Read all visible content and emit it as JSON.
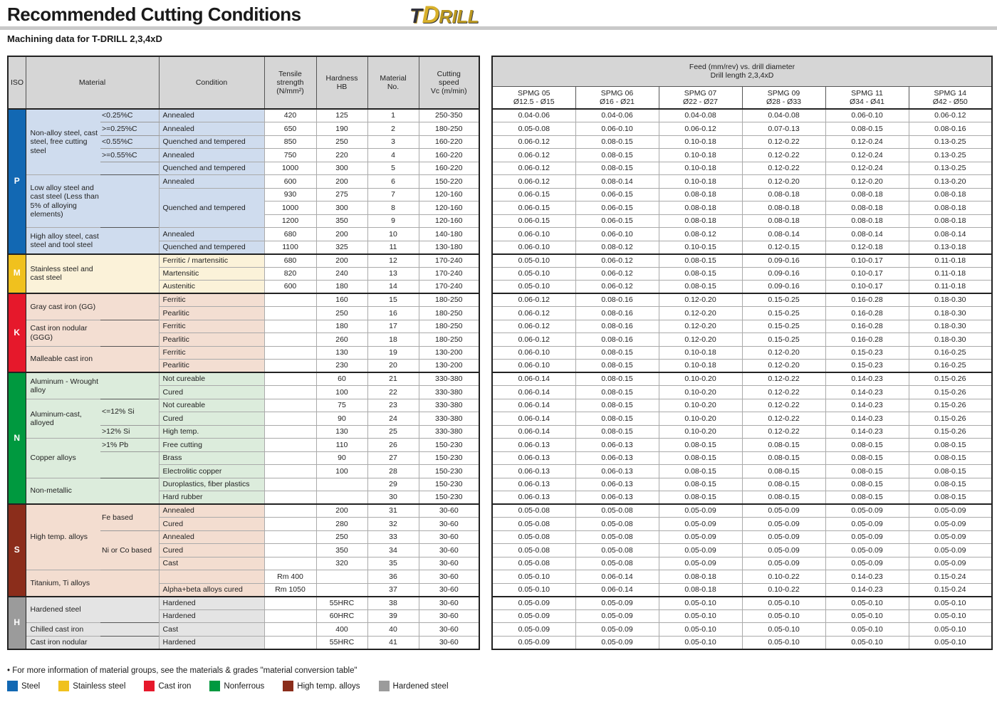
{
  "header": {
    "title": "Recommended Cutting Conditions",
    "subtitle": "Machining data for T-DRILL 2,3,4xD",
    "logo": {
      "t": "T",
      "d": "D",
      "rest": "RILL"
    }
  },
  "left_table": {
    "columns": {
      "iso": "ISO",
      "material": "Material",
      "condition": "Condition",
      "tensile": "Tensile\nstrength\n(N/mm²)",
      "hardness": "Hardness\nHB",
      "material_no": "Material\nNo.",
      "cutting_speed": "Cutting\nspeed\nVc (m/min)"
    },
    "groups": [
      {
        "iso": "P",
        "tab_color": "#1268b3",
        "row_bg": "#cfdcee",
        "materials": [
          {
            "name": "Non-alloy steel, cast steel, free cutting steel",
            "rows": [
              {
                "sub": "<0.25%C",
                "cond": "Annealed",
                "tensile": "420",
                "hb": "125",
                "no": "1",
                "vc": "250-350"
              },
              {
                "sub": ">=0.25%C",
                "cond": "Annealed",
                "tensile": "650",
                "hb": "190",
                "no": "2",
                "vc": "180-250"
              },
              {
                "sub": "<0.55%C",
                "cond": "Quenched and tempered",
                "tensile": "850",
                "hb": "250",
                "no": "3",
                "vc": "160-220"
              },
              {
                "sub": ">=0.55%C",
                "cond": "Annealed",
                "tensile": "750",
                "hb": "220",
                "no": "4",
                "vc": "160-220"
              },
              {
                "sub": "",
                "cond": "Quenched and tempered",
                "tensile": "1000",
                "hb": "300",
                "no": "5",
                "vc": "160-220"
              }
            ]
          },
          {
            "name": "Low alloy steel and cast steel (Less than 5% of alloying elements)",
            "rows": [
              {
                "sub": "",
                "cond": "Annealed",
                "tensile": "600",
                "hb": "200",
                "no": "6",
                "vc": "150-220"
              },
              {
                "sub": "",
                "cond": "Quenched and tempered",
                "cond_span": 3,
                "tensile": "930",
                "hb": "275",
                "no": "7",
                "vc": "120-160"
              },
              {
                "sub": "",
                "cond": null,
                "tensile": "1000",
                "hb": "300",
                "no": "8",
                "vc": "120-160"
              },
              {
                "sub": "",
                "cond": null,
                "tensile": "1200",
                "hb": "350",
                "no": "9",
                "vc": "120-160"
              }
            ]
          },
          {
            "name": "High alloy steel, cast steel and tool steel",
            "rows": [
              {
                "sub": "",
                "cond": "Annealed",
                "tensile": "680",
                "hb": "200",
                "no": "10",
                "vc": "140-180"
              },
              {
                "sub": "",
                "cond": "Quenched and tempered",
                "tensile": "1100",
                "hb": "325",
                "no": "11",
                "vc": "130-180"
              }
            ]
          }
        ]
      },
      {
        "iso": "M",
        "tab_color": "#f0c11e",
        "row_bg": "#fbf2d9",
        "materials": [
          {
            "name": "Stainless steel and cast steel",
            "rows": [
              {
                "sub": "",
                "cond": "Ferritic / martensitic",
                "tensile": "680",
                "hb": "200",
                "no": "12",
                "vc": "170-240"
              },
              {
                "sub": "",
                "cond": "Martensitic",
                "tensile": "820",
                "hb": "240",
                "no": "13",
                "vc": "170-240"
              },
              {
                "sub": "",
                "cond": "Austenitic",
                "tensile": "600",
                "hb": "180",
                "no": "14",
                "vc": "170-240"
              }
            ]
          }
        ]
      },
      {
        "iso": "K",
        "tab_color": "#e6182b",
        "row_bg": "#f3ded2",
        "materials": [
          {
            "name": "Gray cast iron (GG)",
            "rows": [
              {
                "sub": "",
                "cond": "Ferritic",
                "tensile": "",
                "hb": "160",
                "no": "15",
                "vc": "180-250"
              },
              {
                "sub": "",
                "cond": "Pearlitic",
                "tensile": "",
                "hb": "250",
                "no": "16",
                "vc": "180-250"
              }
            ]
          },
          {
            "name": "Cast iron nodular (GGG)",
            "rows": [
              {
                "sub": "",
                "cond": "Ferritic",
                "tensile": "",
                "hb": "180",
                "no": "17",
                "vc": "180-250"
              },
              {
                "sub": "",
                "cond": "Pearlitic",
                "tensile": "",
                "hb": "260",
                "no": "18",
                "vc": "180-250"
              }
            ]
          },
          {
            "name": "Malleable cast iron",
            "rows": [
              {
                "sub": "",
                "cond": "Ferritic",
                "tensile": "",
                "hb": "130",
                "no": "19",
                "vc": "130-200"
              },
              {
                "sub": "",
                "cond": "Pearlitic",
                "tensile": "",
                "hb": "230",
                "no": "20",
                "vc": "130-200"
              }
            ]
          }
        ]
      },
      {
        "iso": "N",
        "tab_color": "#00993f",
        "row_bg": "#dcecdc",
        "materials": [
          {
            "name": "Aluminum - Wrought alloy",
            "rows": [
              {
                "sub": "",
                "cond": "Not cureable",
                "tensile": "",
                "hb": "60",
                "no": "21",
                "vc": "330-380"
              },
              {
                "sub": "",
                "cond": "Cured",
                "tensile": "",
                "hb": "100",
                "no": "22",
                "vc": "330-380"
              }
            ]
          },
          {
            "name": "Aluminum-cast, alloyed",
            "rows": [
              {
                "sub": "<=12% Si",
                "sub_span": 2,
                "cond": "Not cureable",
                "tensile": "",
                "hb": "75",
                "no": "23",
                "vc": "330-380"
              },
              {
                "sub": null,
                "cond": "Cured",
                "tensile": "",
                "hb": "90",
                "no": "24",
                "vc": "330-380"
              },
              {
                "sub": ">12% Si",
                "cond": "High temp.",
                "tensile": "",
                "hb": "130",
                "no": "25",
                "vc": "330-380"
              }
            ]
          },
          {
            "name": "Copper alloys",
            "rows": [
              {
                "sub": ">1% Pb",
                "cond": "Free cutting",
                "tensile": "",
                "hb": "110",
                "no": "26",
                "vc": "150-230"
              },
              {
                "sub": "",
                "cond": "Brass",
                "tensile": "",
                "hb": "90",
                "no": "27",
                "vc": "150-230"
              },
              {
                "sub": "",
                "cond": "Electrolitic copper",
                "tensile": "",
                "hb": "100",
                "no": "28",
                "vc": "150-230"
              }
            ]
          },
          {
            "name": "Non-metallic",
            "rows": [
              {
                "sub": "",
                "cond": "Duroplastics, fiber plastics",
                "tensile": "",
                "hb": "",
                "no": "29",
                "vc": "150-230"
              },
              {
                "sub": "",
                "cond": "Hard rubber",
                "tensile": "",
                "hb": "",
                "no": "30",
                "vc": "150-230"
              }
            ]
          }
        ]
      },
      {
        "iso": "S",
        "tab_color": "#8b2d1b",
        "row_bg": "#f3ddd0",
        "materials": [
          {
            "name": "High temp. alloys",
            "rows": [
              {
                "sub": "Fe based",
                "sub_span": 2,
                "cond": "Annealed",
                "tensile": "",
                "hb": "200",
                "no": "31",
                "vc": "30-60"
              },
              {
                "sub": null,
                "cond": "Cured",
                "tensile": "",
                "hb": "280",
                "no": "32",
                "vc": "30-60"
              },
              {
                "sub": "Ni or Co based",
                "sub_span": 3,
                "cond": "Annealed",
                "tensile": "",
                "hb": "250",
                "no": "33",
                "vc": "30-60"
              },
              {
                "sub": null,
                "cond": "Cured",
                "tensile": "",
                "hb": "350",
                "no": "34",
                "vc": "30-60"
              },
              {
                "sub": null,
                "cond": "Cast",
                "tensile": "",
                "hb": "320",
                "no": "35",
                "vc": "30-60"
              }
            ]
          },
          {
            "name": "Titanium, Ti alloys",
            "rows": [
              {
                "sub": "",
                "cond": "",
                "tensile": "Rm 400",
                "hb": "",
                "no": "36",
                "vc": "30-60"
              },
              {
                "sub": "",
                "cond": "Alpha+beta alloys cured",
                "tensile": "Rm 1050",
                "hb": "",
                "no": "37",
                "vc": "30-60"
              }
            ]
          }
        ]
      },
      {
        "iso": "H",
        "tab_color": "#9b9b9b",
        "row_bg": "#e4e4e4",
        "materials": [
          {
            "name": "Hardened steel",
            "rows": [
              {
                "sub": "",
                "cond": "Hardened",
                "tensile": "",
                "hb": "55HRC",
                "no": "38",
                "vc": "30-60"
              },
              {
                "sub": "",
                "cond": "Hardened",
                "tensile": "",
                "hb": "60HRC",
                "no": "39",
                "vc": "30-60"
              }
            ]
          },
          {
            "name": "Chilled cast iron",
            "rows": [
              {
                "sub": "",
                "cond": "Cast",
                "tensile": "",
                "hb": "400",
                "no": "40",
                "vc": "30-60"
              }
            ]
          },
          {
            "name": "Cast iron nodular",
            "rows": [
              {
                "sub": "",
                "cond": "Hardened",
                "tensile": "",
                "hb": "55HRC",
                "no": "41",
                "vc": "30-60"
              }
            ]
          }
        ]
      }
    ]
  },
  "feed_table": {
    "header": "Feed (mm/rev) vs. drill diameter\nDrill length 2,3,4xD",
    "columns": [
      {
        "name": "SPMG 05",
        "range": "Ø12.5 - Ø15"
      },
      {
        "name": "SPMG 06",
        "range": "Ø16 - Ø21"
      },
      {
        "name": "SPMG 07",
        "range": "Ø22 - Ø27"
      },
      {
        "name": "SPMG 09",
        "range": "Ø28 - Ø33"
      },
      {
        "name": "SPMG 11",
        "range": "Ø34 - Ø41"
      },
      {
        "name": "SPMG 14",
        "range": "Ø42 - Ø50"
      }
    ],
    "rows": [
      [
        "0.04-0.06",
        "0.04-0.06",
        "0.04-0.08",
        "0.04-0.08",
        "0.06-0.10",
        "0.06-0.12"
      ],
      [
        "0.05-0.08",
        "0.06-0.10",
        "0.06-0.12",
        "0.07-0.13",
        "0.08-0.15",
        "0.08-0.16"
      ],
      [
        "0.06-0.12",
        "0.08-0.15",
        "0.10-0.18",
        "0.12-0.22",
        "0.12-0.24",
        "0.13-0.25"
      ],
      [
        "0.06-0.12",
        "0.08-0.15",
        "0.10-0.18",
        "0.12-0.22",
        "0.12-0.24",
        "0.13-0.25"
      ],
      [
        "0.06-0.12",
        "0.08-0.15",
        "0.10-0.18",
        "0.12-0.22",
        "0.12-0.24",
        "0.13-0.25"
      ],
      [
        "0.06-0.12",
        "0.08-0.14",
        "0.10-0.18",
        "0.12-0.20",
        "0.12-0.20",
        "0.13-0.20"
      ],
      [
        "0.06-0.15",
        "0.06-0.15",
        "0.08-0.18",
        "0.08-0.18",
        "0.08-0.18",
        "0.08-0.18"
      ],
      [
        "0.06-0.15",
        "0.06-0.15",
        "0.08-0.18",
        "0.08-0.18",
        "0.08-0.18",
        "0.08-0.18"
      ],
      [
        "0.06-0.15",
        "0.06-0.15",
        "0.08-0.18",
        "0.08-0.18",
        "0.08-0.18",
        "0.08-0.18"
      ],
      [
        "0.06-0.10",
        "0.06-0.10",
        "0.08-0.12",
        "0.08-0.14",
        "0.08-0.14",
        "0.08-0.14"
      ],
      [
        "0.06-0.10",
        "0.08-0.12",
        "0.10-0.15",
        "0.12-0.15",
        "0.12-0.18",
        "0.13-0.18"
      ],
      [
        "0.05-0.10",
        "0.06-0.12",
        "0.08-0.15",
        "0.09-0.16",
        "0.10-0.17",
        "0.11-0.18"
      ],
      [
        "0.05-0.10",
        "0.06-0.12",
        "0.08-0.15",
        "0.09-0.16",
        "0.10-0.17",
        "0.11-0.18"
      ],
      [
        "0.05-0.10",
        "0.06-0.12",
        "0.08-0.15",
        "0.09-0.16",
        "0.10-0.17",
        "0.11-0.18"
      ],
      [
        "0.06-0.12",
        "0.08-0.16",
        "0.12-0.20",
        "0.15-0.25",
        "0.16-0.28",
        "0.18-0.30"
      ],
      [
        "0.06-0.12",
        "0.08-0.16",
        "0.12-0.20",
        "0.15-0.25",
        "0.16-0.28",
        "0.18-0.30"
      ],
      [
        "0.06-0.12",
        "0.08-0.16",
        "0.12-0.20",
        "0.15-0.25",
        "0.16-0.28",
        "0.18-0.30"
      ],
      [
        "0.06-0.12",
        "0.08-0.16",
        "0.12-0.20",
        "0.15-0.25",
        "0.16-0.28",
        "0.18-0.30"
      ],
      [
        "0.06-0.10",
        "0.08-0.15",
        "0.10-0.18",
        "0.12-0.20",
        "0.15-0.23",
        "0.16-0.25"
      ],
      [
        "0.06-0.10",
        "0.08-0.15",
        "0.10-0.18",
        "0.12-0.20",
        "0.15-0.23",
        "0.16-0.25"
      ],
      [
        "0.06-0.14",
        "0.08-0.15",
        "0.10-0.20",
        "0.12-0.22",
        "0.14-0.23",
        "0.15-0.26"
      ],
      [
        "0.06-0.14",
        "0.08-0.15",
        "0.10-0.20",
        "0.12-0.22",
        "0.14-0.23",
        "0.15-0.26"
      ],
      [
        "0.06-0.14",
        "0.08-0.15",
        "0.10-0.20",
        "0.12-0.22",
        "0.14-0.23",
        "0.15-0.26"
      ],
      [
        "0.06-0.14",
        "0.08-0.15",
        "0.10-0.20",
        "0.12-0.22",
        "0.14-0.23",
        "0.15-0.26"
      ],
      [
        "0.06-0.14",
        "0.08-0.15",
        "0.10-0.20",
        "0.12-0.22",
        "0.14-0.23",
        "0.15-0.26"
      ],
      [
        "0.06-0.13",
        "0.06-0.13",
        "0.08-0.15",
        "0.08-0.15",
        "0.08-0.15",
        "0.08-0.15"
      ],
      [
        "0.06-0.13",
        "0.06-0.13",
        "0.08-0.15",
        "0.08-0.15",
        "0.08-0.15",
        "0.08-0.15"
      ],
      [
        "0.06-0.13",
        "0.06-0.13",
        "0.08-0.15",
        "0.08-0.15",
        "0.08-0.15",
        "0.08-0.15"
      ],
      [
        "0.06-0.13",
        "0.06-0.13",
        "0.08-0.15",
        "0.08-0.15",
        "0.08-0.15",
        "0.08-0.15"
      ],
      [
        "0.06-0.13",
        "0.06-0.13",
        "0.08-0.15",
        "0.08-0.15",
        "0.08-0.15",
        "0.08-0.15"
      ],
      [
        "0.05-0.08",
        "0.05-0.08",
        "0.05-0.09",
        "0.05-0.09",
        "0.05-0.09",
        "0.05-0.09"
      ],
      [
        "0.05-0.08",
        "0.05-0.08",
        "0.05-0.09",
        "0.05-0.09",
        "0.05-0.09",
        "0.05-0.09"
      ],
      [
        "0.05-0.08",
        "0.05-0.08",
        "0.05-0.09",
        "0.05-0.09",
        "0.05-0.09",
        "0.05-0.09"
      ],
      [
        "0.05-0.08",
        "0.05-0.08",
        "0.05-0.09",
        "0.05-0.09",
        "0.05-0.09",
        "0.05-0.09"
      ],
      [
        "0.05-0.08",
        "0.05-0.08",
        "0.05-0.09",
        "0.05-0.09",
        "0.05-0.09",
        "0.05-0.09"
      ],
      [
        "0.05-0.10",
        "0.06-0.14",
        "0.08-0.18",
        "0.10-0.22",
        "0.14-0.23",
        "0.15-0.24"
      ],
      [
        "0.05-0.10",
        "0.06-0.14",
        "0.08-0.18",
        "0.10-0.22",
        "0.14-0.23",
        "0.15-0.24"
      ],
      [
        "0.05-0.09",
        "0.05-0.09",
        "0.05-0.10",
        "0.05-0.10",
        "0.05-0.10",
        "0.05-0.10"
      ],
      [
        "0.05-0.09",
        "0.05-0.09",
        "0.05-0.10",
        "0.05-0.10",
        "0.05-0.10",
        "0.05-0.10"
      ],
      [
        "0.05-0.09",
        "0.05-0.09",
        "0.05-0.10",
        "0.05-0.10",
        "0.05-0.10",
        "0.05-0.10"
      ],
      [
        "0.05-0.09",
        "0.05-0.09",
        "0.05-0.10",
        "0.05-0.10",
        "0.05-0.10",
        "0.05-0.10"
      ]
    ]
  },
  "footer": {
    "note": "• For more information of material groups, see the materials & grades \"material conversion table\"",
    "legend": [
      {
        "label": "Steel",
        "color": "#1268b3"
      },
      {
        "label": "Stainless steel",
        "color": "#f0c11e"
      },
      {
        "label": "Cast iron",
        "color": "#e6182b"
      },
      {
        "label": "Nonferrous",
        "color": "#00993f"
      },
      {
        "label": "High temp. alloys",
        "color": "#8b2d1b"
      },
      {
        "label": "Hardened steel",
        "color": "#9b9b9b"
      }
    ]
  }
}
